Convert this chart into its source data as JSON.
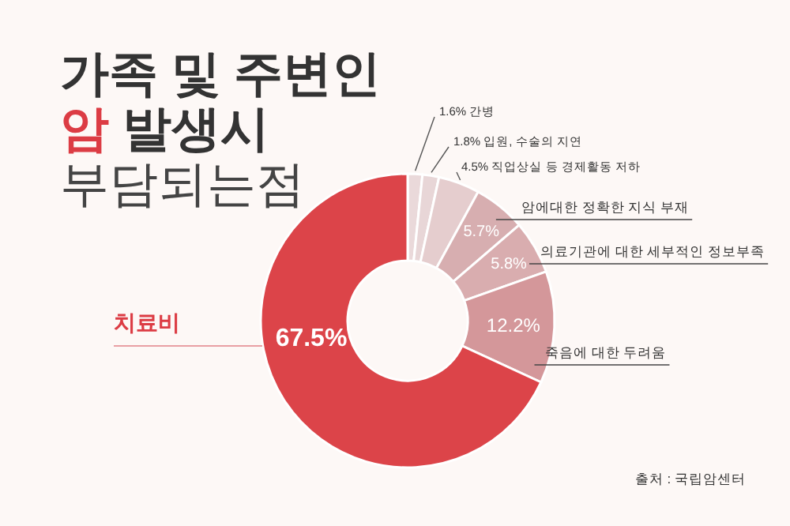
{
  "chart_data": {
    "type": "donut",
    "title": "가족 및 주변인\n암 발생시\n부담되는점",
    "categories": [
      "간병",
      "입원, 수술의 지연",
      "직업상실 등 경제활동 저하",
      "암에대한 정확한 지식 부재",
      "의료기관에 대한 세부적인 정보부족",
      "죽음에 대한 두려움",
      "치료비"
    ],
    "values": [
      1.6,
      1.8,
      4.5,
      5.7,
      5.8,
      12.2,
      67.5
    ],
    "value_labels": [
      "1.6%",
      "1.8%",
      "4.5%",
      "5.7%",
      "5.8%",
      "12.2%",
      "67.5%"
    ],
    "colors": [
      "#ead9da",
      "#e8d6d7",
      "#e5cdce",
      "#d7aeb0",
      "#d9adaf",
      "#d4979a",
      "#dc4449"
    ],
    "annotations": [
      "출처 : 국립암센터"
    ]
  }
}
